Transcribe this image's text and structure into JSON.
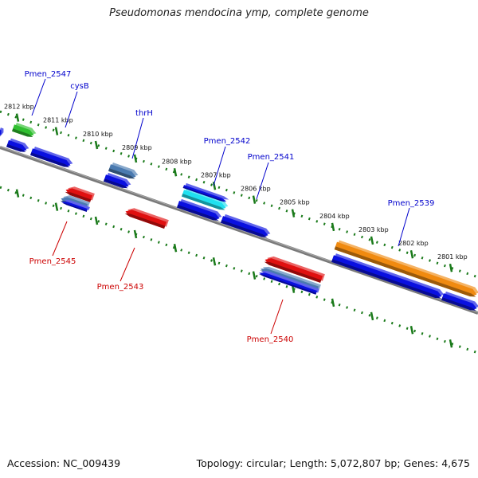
{
  "title": "Pseudomonas mendocina ymp, complete genome",
  "footer": {
    "accession": "Accession: NC_009439",
    "summary": "Topology: circular; Length: 5,072,807 bp; Genes: 4,675"
  },
  "colors": {
    "forward_label": "#0000cc",
    "reverse_label": "#cc0000",
    "backbone": "#7a7a7a",
    "dots": "#1a7a1a",
    "blue_gene": "#0a10e0",
    "red_gene": "#e01010",
    "green_gene": "#30c030",
    "steel_gene": "#4a7ab0",
    "orange_gene": "#f08a10",
    "cyan_gene": "#20e0f0"
  },
  "ticks": [
    {
      "label": "2812 kbp"
    },
    {
      "label": "2811 kbp"
    },
    {
      "label": "2810 kbp"
    },
    {
      "label": "2809 kbp"
    },
    {
      "label": "2808 kbp"
    },
    {
      "label": "2807 kbp"
    },
    {
      "label": "2806 kbp"
    },
    {
      "label": "2805 kbp"
    },
    {
      "label": "2804 kbp"
    },
    {
      "label": "2803 kbp"
    },
    {
      "label": "2802 kbp"
    },
    {
      "label": "2801 kbp"
    }
  ],
  "gene_labels": [
    {
      "text": "Pmen_2547",
      "strand": "forward"
    },
    {
      "text": "cysB",
      "strand": "forward"
    },
    {
      "text": "thrH",
      "strand": "forward"
    },
    {
      "text": "Pmen_2542",
      "strand": "forward"
    },
    {
      "text": "Pmen_2541",
      "strand": "forward"
    },
    {
      "text": "Pmen_2539",
      "strand": "forward"
    },
    {
      "text": "Pmen_2545",
      "strand": "reverse"
    },
    {
      "text": "Pmen_2543",
      "strand": "reverse"
    },
    {
      "text": "Pmen_2540",
      "strand": "reverse"
    }
  ]
}
